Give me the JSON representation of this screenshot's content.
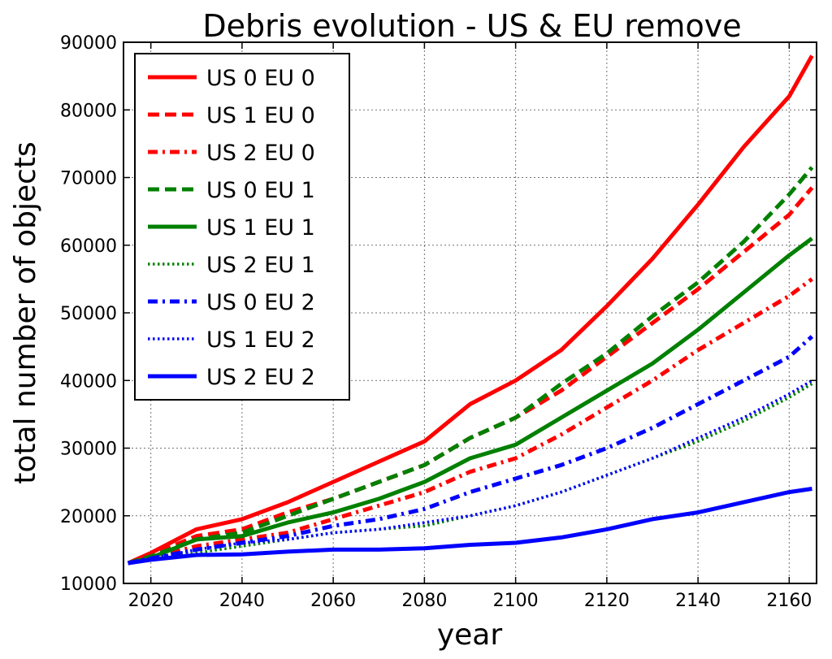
{
  "chart_data": {
    "type": "line",
    "title": "Debris evolution - US & EU remove",
    "xlabel": "year",
    "ylabel": "total number of objects",
    "xlim": [
      2014,
      2166
    ],
    "ylim": [
      10000,
      90000
    ],
    "xticks": [
      2020,
      2040,
      2060,
      2080,
      2100,
      2120,
      2140,
      2160
    ],
    "yticks": [
      10000,
      20000,
      30000,
      40000,
      50000,
      60000,
      70000,
      80000,
      90000
    ],
    "grid": true,
    "legend_position": "upper-left",
    "x": [
      2015,
      2020,
      2030,
      2040,
      2050,
      2060,
      2070,
      2080,
      2090,
      2100,
      2110,
      2120,
      2130,
      2140,
      2150,
      2160,
      2165
    ],
    "series": [
      {
        "name": "US 0 EU 0",
        "color": "#ff0000",
        "style": "solid",
        "values": [
          13000,
          14500,
          18000,
          19500,
          22000,
          25000,
          28000,
          31000,
          36500,
          40000,
          44500,
          51000,
          58000,
          66000,
          74500,
          82000,
          88000
        ]
      },
      {
        "name": "US 1 EU 0",
        "color": "#ff0000",
        "style": "dashed",
        "values": [
          13000,
          14200,
          17000,
          18000,
          20500,
          22500,
          25000,
          27500,
          31500,
          34500,
          38500,
          43500,
          48500,
          53500,
          59000,
          64500,
          68500
        ]
      },
      {
        "name": "US 2 EU 0",
        "color": "#ff0000",
        "style": "dashdot",
        "values": [
          13000,
          13800,
          15500,
          16500,
          17500,
          19500,
          21500,
          23500,
          26500,
          28500,
          32000,
          36000,
          40000,
          44500,
          48500,
          52500,
          55000
        ]
      },
      {
        "name": "US 0 EU 1",
        "color": "#008000",
        "style": "dashed",
        "values": [
          13000,
          14000,
          16500,
          17500,
          20000,
          22500,
          25000,
          27500,
          31500,
          34500,
          39500,
          44000,
          49500,
          54500,
          60500,
          67500,
          71500
        ]
      },
      {
        "name": "US 1 EU 1",
        "color": "#008000",
        "style": "solid",
        "values": [
          13000,
          13800,
          16500,
          17000,
          19000,
          20500,
          22500,
          25000,
          28500,
          30500,
          34500,
          38500,
          42500,
          47500,
          53000,
          58500,
          61000
        ]
      },
      {
        "name": "US 2 EU 1",
        "color": "#008000",
        "style": "dotted",
        "values": [
          13000,
          13700,
          14500,
          15500,
          16500,
          17500,
          18000,
          18500,
          20000,
          21500,
          23500,
          26000,
          28500,
          31000,
          34000,
          37500,
          39500
        ]
      },
      {
        "name": "US 0 EU 2",
        "color": "#0000ff",
        "style": "dashdot",
        "values": [
          13000,
          13700,
          15000,
          16000,
          17000,
          18500,
          19500,
          21000,
          23500,
          25500,
          27500,
          30000,
          33000,
          36500,
          40000,
          43500,
          46500
        ]
      },
      {
        "name": "US 1 EU 2",
        "color": "#0000ff",
        "style": "dotted",
        "values": [
          13000,
          13700,
          15000,
          16000,
          16500,
          17500,
          18000,
          19000,
          20000,
          21500,
          23500,
          26000,
          28500,
          31500,
          34500,
          38000,
          40000
        ]
      },
      {
        "name": "US 2 EU 2",
        "color": "#0000ff",
        "style": "solid",
        "values": [
          13000,
          13500,
          14200,
          14300,
          14700,
          15000,
          15000,
          15200,
          15700,
          16000,
          16800,
          18000,
          19500,
          20500,
          22000,
          23500,
          24000
        ]
      }
    ]
  }
}
